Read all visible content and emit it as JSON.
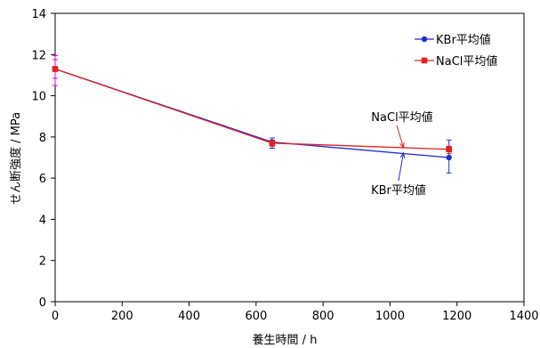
{
  "chart_data": {
    "type": "line",
    "xlabel": "養生時間 / h",
    "ylabel": "せん断強度 / MPa",
    "xlim": [
      0,
      1400
    ],
    "ylim": [
      0,
      14
    ],
    "x_ticks": [
      0,
      200,
      400,
      600,
      800,
      1000,
      1200,
      1400
    ],
    "y_ticks": [
      0,
      2,
      4,
      6,
      8,
      10,
      12,
      14
    ],
    "grid": false,
    "legend_position": "top-right",
    "series": [
      {
        "name": "KBr平均値",
        "color": "#1f2bd6",
        "marker": "circle",
        "x": [
          0,
          648,
          1176
        ],
        "y": [
          11.3,
          7.75,
          7.0
        ],
        "err_low": [
          10.85,
          7.45,
          6.25
        ],
        "err_high": [
          11.75,
          7.95,
          7.85
        ]
      },
      {
        "name": "NaCl平均値",
        "color": "#e0201f",
        "marker": "square",
        "x": [
          0,
          648,
          1176
        ],
        "y": [
          11.3,
          7.7,
          7.4
        ],
        "err_low": [
          10.5,
          7.55,
          7.2
        ],
        "err_high": [
          11.95,
          7.85,
          7.55
        ]
      }
    ],
    "annotations": [
      {
        "text": "NaCl平均値",
        "series": "NaCl平均値",
        "arrow_to": [
          1040,
          7.48
        ]
      },
      {
        "text": "KBr平均値",
        "series": "KBr平均値",
        "arrow_to": [
          1040,
          7.22
        ]
      }
    ],
    "errorbar_color": "#e000e0"
  }
}
